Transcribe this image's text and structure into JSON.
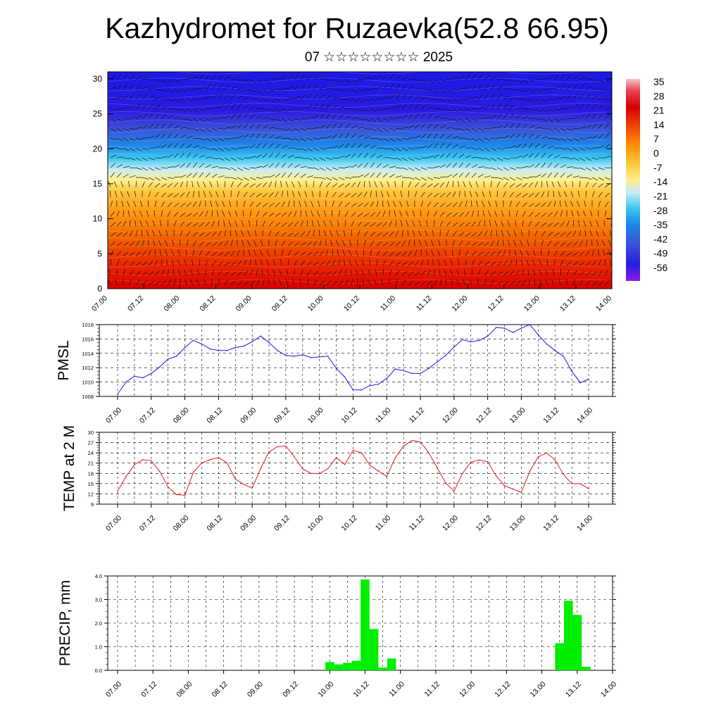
{
  "header": {
    "title": "Kazhydromet for Ruzaevka(52.8 66.95)",
    "subtitle": "07 ☆☆☆☆☆☆☆☆ 2025"
  },
  "chart_data": [
    {
      "type": "heatmap",
      "title": "Kazhydromet for Ruzaevka(52.8 66.95)",
      "subtitle": "07 ☆☆☆☆☆☆☆☆ 2025",
      "x_ticks": [
        "07.00",
        "07.12",
        "08.00",
        "08.12",
        "09.00",
        "09.12",
        "10.00",
        "10.12",
        "11.00",
        "11.12",
        "12.00",
        "12.12",
        "13.00",
        "13.12",
        "14.00"
      ],
      "y_ticks": [
        0,
        5,
        10,
        15,
        20,
        25,
        30
      ],
      "ylim": [
        0,
        31
      ],
      "colorbar": {
        "labels": [
          "35",
          "28",
          "21",
          "14",
          "7",
          "0",
          "-7",
          "-14",
          "-21",
          "-28",
          "-35",
          "-42",
          "-49",
          "-56"
        ],
        "palette": [
          "#f5c8cc",
          "#d90000",
          "#f06000",
          "#ff9800",
          "#ffc63c",
          "#fff08c",
          "#c8ecf6",
          "#3cc8f0",
          "#1e88e8",
          "#3c50d8",
          "#2a1ae0",
          "#8a1ee6"
        ]
      },
      "temperature_profile": [
        {
          "level": 0,
          "value": 26
        },
        {
          "level": 5,
          "value": 22
        },
        {
          "level": 10,
          "value": 10
        },
        {
          "level": 14,
          "value": 0
        },
        {
          "level": 16,
          "value": -8
        },
        {
          "level": 18,
          "value": -24
        },
        {
          "level": 20,
          "value": -42
        },
        {
          "level": 24,
          "value": -56
        },
        {
          "level": 31,
          "value": -52
        }
      ],
      "wind_barbs": true
    },
    {
      "type": "line",
      "ylabel": "PMSL",
      "series_color": "#1a1ae6",
      "ylim": [
        1008,
        1018
      ],
      "y_ticks": [
        1008,
        1010,
        1012,
        1014,
        1016,
        1018
      ],
      "x_ticks": [
        "07.00",
        "07.12",
        "08.00",
        "08.12",
        "09.00",
        "09.12",
        "10.00",
        "10.12",
        "11.00",
        "11.12",
        "12.00",
        "12.12",
        "13.00",
        "13.12",
        "14.00"
      ],
      "x": [
        0,
        3,
        6,
        9,
        12,
        15,
        18,
        21,
        24,
        27,
        30,
        33,
        36,
        39,
        42,
        45,
        48,
        51,
        54,
        57,
        60,
        63,
        66,
        69,
        72,
        75,
        78,
        81,
        84,
        87,
        90,
        93,
        96,
        99,
        102,
        105,
        108,
        111,
        114,
        117,
        120,
        123,
        126,
        129,
        132,
        135,
        138,
        141,
        144,
        147,
        150,
        153,
        156,
        159,
        162,
        165,
        168
      ],
      "values": [
        1008.3,
        1010.0,
        1010.8,
        1010.6,
        1011.2,
        1012.1,
        1013.2,
        1013.6,
        1014.8,
        1015.8,
        1015.3,
        1014.6,
        1014.4,
        1014.4,
        1014.8,
        1015.0,
        1015.6,
        1016.4,
        1015.5,
        1014.4,
        1013.7,
        1013.6,
        1013.8,
        1013.4,
        1013.5,
        1013.6,
        1011.9,
        1010.7,
        1008.9,
        1008.9,
        1009.5,
        1009.7,
        1010.5,
        1011.8,
        1011.6,
        1011.2,
        1011.2,
        1011.9,
        1012.8,
        1013.7,
        1014.9,
        1015.9,
        1015.6,
        1015.8,
        1016.4,
        1017.6,
        1017.5,
        1016.9,
        1017.5,
        1018.0,
        1016.6,
        1015.3,
        1014.4,
        1013.6,
        1011.5,
        1009.9,
        1010.4
      ]
    },
    {
      "type": "line",
      "ylabel": "TEMP at 2 M",
      "series_color": "#e61a1a",
      "ylim": [
        9,
        30
      ],
      "y_ticks": [
        9,
        12,
        15,
        18,
        21,
        24,
        27,
        30
      ],
      "x_ticks": [
        "07.00",
        "07.12",
        "08.00",
        "08.12",
        "09.00",
        "09.12",
        "10.00",
        "10.12",
        "11.00",
        "11.12",
        "12.00",
        "12.12",
        "13.00",
        "13.12",
        "14.00"
      ],
      "x": [
        0,
        3,
        6,
        9,
        12,
        15,
        18,
        21,
        24,
        27,
        30,
        33,
        36,
        39,
        42,
        45,
        48,
        51,
        54,
        57,
        60,
        63,
        66,
        69,
        72,
        75,
        78,
        81,
        84,
        87,
        90,
        93,
        96,
        99,
        102,
        105,
        108,
        111,
        114,
        117,
        120,
        123,
        126,
        129,
        132,
        135,
        138,
        141,
        144,
        147,
        150,
        153,
        156,
        159,
        162,
        165,
        168
      ],
      "values": [
        12.8,
        17.0,
        20.5,
        22.0,
        21.7,
        18.6,
        14.0,
        11.8,
        11.6,
        18.3,
        21.0,
        22.0,
        22.6,
        21.1,
        16.3,
        14.8,
        13.7,
        19.4,
        24.3,
        25.8,
        26.0,
        22.9,
        19.3,
        18.0,
        17.9,
        19.4,
        22.6,
        20.6,
        24.7,
        24.0,
        20.4,
        18.7,
        17.1,
        22.5,
        26.0,
        27.6,
        27.2,
        24.0,
        19.6,
        15.2,
        12.8,
        18.0,
        21.3,
        21.9,
        21.4,
        17.3,
        14.4,
        13.4,
        12.4,
        18.6,
        22.8,
        24.0,
        21.9,
        17.7,
        15.0,
        15.0,
        13.5
      ]
    },
    {
      "type": "bar",
      "ylabel": "PRECIP, mm",
      "bar_color": "#00ee00",
      "ylim": [
        0,
        4
      ],
      "y_ticks": [
        "0.0",
        "1.0",
        "2.0",
        "3.0",
        "4.0"
      ],
      "x_ticks": [
        "07.00",
        "07.12",
        "08.00",
        "08.12",
        "09.00",
        "09.12",
        "10.00",
        "10.12",
        "11.00",
        "11.12",
        "12.00",
        "12.12",
        "13.00",
        "13.12",
        "14.00"
      ],
      "x": [
        72,
        75,
        78,
        81,
        84,
        87,
        90,
        93,
        150,
        153,
        156,
        159
      ],
      "values": [
        0.35,
        0.25,
        0.32,
        0.4,
        3.85,
        1.75,
        0.12,
        0.5,
        1.15,
        2.95,
        2.35,
        0.15
      ]
    }
  ]
}
